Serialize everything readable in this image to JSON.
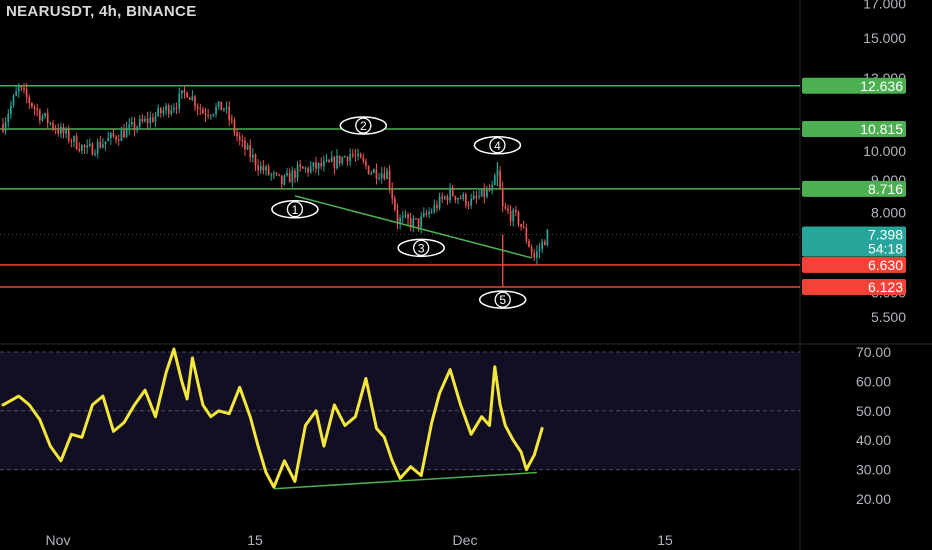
{
  "header": {
    "symbol": "NEARUSDT",
    "interval": "4h",
    "exchange": "BINANCE"
  },
  "colors": {
    "background": "#000000",
    "candle_up": "#26a69a",
    "candle_down": "#ef5350",
    "support_green": "#4caf50",
    "support_red": "#f44336",
    "rsi": "#f5e63c",
    "rsi_band": "#120f24",
    "divergence": "#4caf50",
    "price_badge": "#26a69a"
  },
  "chart_data": [
    {
      "type": "candlestick",
      "symbol": "NEARUSDT",
      "interval": "4h",
      "exchange": "BINANCE",
      "x_ticks": [
        "Nov",
        "15",
        "Dec",
        "15"
      ],
      "y_ticks": [
        "5.500",
        "6.000",
        "7.000",
        "8.000",
        "9.000",
        "10.000",
        "13.000",
        "15.000",
        "17.000"
      ],
      "y_scale": "log",
      "ylim": [
        5.2,
        17.5
      ],
      "price_path": [
        {
          "bar": 0,
          "price": 11.0
        },
        {
          "bar": 6,
          "price": 12.5
        },
        {
          "bar": 14,
          "price": 11.4
        },
        {
          "bar": 22,
          "price": 10.7
        },
        {
          "bar": 32,
          "price": 10.0
        },
        {
          "bar": 44,
          "price": 10.6
        },
        {
          "bar": 56,
          "price": 11.2
        },
        {
          "bar": 66,
          "price": 11.9
        },
        {
          "bar": 70,
          "price": 12.4
        },
        {
          "bar": 76,
          "price": 11.5
        },
        {
          "bar": 84,
          "price": 11.7
        },
        {
          "bar": 90,
          "price": 10.3
        },
        {
          "bar": 98,
          "price": 9.4
        },
        {
          "bar": 106,
          "price": 8.9
        },
        {
          "bar": 112,
          "price": 9.3
        },
        {
          "bar": 124,
          "price": 9.5
        },
        {
          "bar": 132,
          "price": 9.9
        },
        {
          "bar": 140,
          "price": 9.3
        },
        {
          "bar": 146,
          "price": 9.25
        },
        {
          "bar": 150,
          "price": 7.8
        },
        {
          "bar": 158,
          "price": 7.7
        },
        {
          "bar": 170,
          "price": 8.6
        },
        {
          "bar": 178,
          "price": 8.3
        },
        {
          "bar": 186,
          "price": 8.7
        },
        {
          "bar": 188,
          "price": 9.2
        },
        {
          "bar": 190,
          "price": 8.1
        },
        {
          "bar": 196,
          "price": 7.8
        },
        {
          "bar": 202,
          "price": 6.8
        },
        {
          "bar": 207,
          "price": 7.4
        }
      ],
      "annotations": [
        {
          "label": "1",
          "bar": 111,
          "price": 8.1
        },
        {
          "label": "2",
          "bar": 137,
          "price": 10.95
        },
        {
          "label": "3",
          "bar": 159,
          "price": 7.05
        },
        {
          "label": "4",
          "bar": 188,
          "price": 10.2
        },
        {
          "label": "5",
          "bar": 190,
          "price": 5.85
        }
      ],
      "trendline": {
        "from": {
          "bar": 111,
          "price": 8.5
        },
        "to": {
          "bar": 201,
          "price": 6.8
        }
      },
      "horizontal_levels": [
        {
          "value": 12.636,
          "label": "12.636",
          "color": "green"
        },
        {
          "value": 10.815,
          "label": "10.815",
          "color": "green"
        },
        {
          "value": 8.716,
          "label": "8.716",
          "color": "green"
        },
        {
          "value": 6.63,
          "label": "6.630",
          "color": "red"
        },
        {
          "value": 6.123,
          "label": "6.123",
          "color": "red"
        }
      ],
      "last_price": {
        "value": 7.398,
        "label": "7.398",
        "countdown": "54:18"
      }
    },
    {
      "type": "line",
      "name": "RSI",
      "y_ticks": [
        "20.00",
        "30.00",
        "40.00",
        "50.00",
        "60.00",
        "70.00"
      ],
      "ylim": [
        17,
        76
      ],
      "band": [
        30,
        70
      ],
      "midline": 50,
      "values": [
        [
          0,
          52
        ],
        [
          6,
          55
        ],
        [
          10,
          52
        ],
        [
          14,
          47
        ],
        [
          18,
          38
        ],
        [
          22,
          33
        ],
        [
          26,
          42
        ],
        [
          30,
          41
        ],
        [
          34,
          52
        ],
        [
          38,
          55
        ],
        [
          42,
          43
        ],
        [
          46,
          46
        ],
        [
          50,
          52
        ],
        [
          54,
          57
        ],
        [
          58,
          48
        ],
        [
          62,
          63
        ],
        [
          65,
          71
        ],
        [
          68,
          60
        ],
        [
          70,
          54
        ],
        [
          72,
          68
        ],
        [
          74,
          60
        ],
        [
          76,
          52
        ],
        [
          79,
          48
        ],
        [
          82,
          50
        ],
        [
          86,
          49
        ],
        [
          90,
          58
        ],
        [
          94,
          48
        ],
        [
          97,
          38
        ],
        [
          100,
          29
        ],
        [
          103,
          24
        ],
        [
          107,
          33
        ],
        [
          111,
          26
        ],
        [
          115,
          45
        ],
        [
          119,
          50
        ],
        [
          122,
          38
        ],
        [
          126,
          52
        ],
        [
          130,
          45
        ],
        [
          134,
          48
        ],
        [
          138,
          61
        ],
        [
          142,
          44
        ],
        [
          145,
          41
        ],
        [
          148,
          33
        ],
        [
          151,
          27
        ],
        [
          155,
          31
        ],
        [
          159,
          28
        ],
        [
          163,
          46
        ],
        [
          166,
          56
        ],
        [
          170,
          64
        ],
        [
          174,
          52
        ],
        [
          178,
          42
        ],
        [
          182,
          48
        ],
        [
          185,
          45
        ],
        [
          187,
          65
        ],
        [
          189,
          52
        ],
        [
          191,
          45
        ],
        [
          194,
          40
        ],
        [
          197,
          36
        ],
        [
          199,
          30
        ],
        [
          202,
          35
        ],
        [
          205,
          44
        ]
      ],
      "divergence_line": {
        "from": [
          103,
          23.5
        ],
        "to": [
          203,
          29
        ]
      }
    }
  ]
}
